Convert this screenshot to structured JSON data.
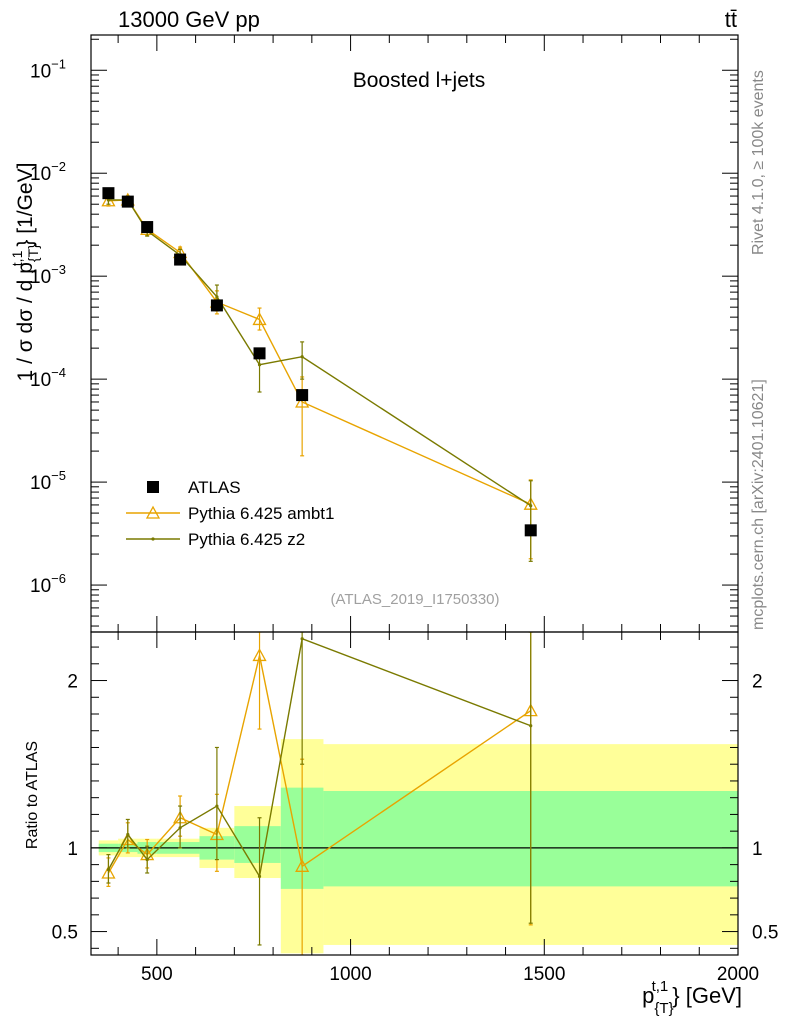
{
  "header": {
    "left": "13000 GeV pp",
    "right": "tt̄"
  },
  "side_labels": {
    "rivet": "Rivet 4.1.0, ≥ 100k events",
    "mcplots": "mcplots.cern.ch [arXiv:2401.10621]"
  },
  "chart_data": {
    "type": "scatter",
    "title": "Boosted l+jets",
    "analysis_id": "(ATLAS_2019_I1750330)",
    "xlabel": "p_{T}^{t,1} [GeV]",
    "ylabel": "1 / σ dσ / d p_{T}^{t,1} [1/GeV]",
    "ratio_ylabel": "Ratio to ATLAS",
    "xlim": [
      330,
      2000
    ],
    "ylim": [
      3.5e-07,
      0.22
    ],
    "ratio_ylim": [
      0.36,
      2.29
    ],
    "x_ticks": [
      "500",
      "1000",
      "1500",
      "2000"
    ],
    "y_ticks": [
      "10^{-6}",
      "10^{-5}",
      "10^{-4}",
      "10^{-3}",
      "10^{-2}",
      "10^{-1}"
    ],
    "ratio_ticks": [
      "0.5",
      "1",
      "2"
    ],
    "bins": [
      {
        "low": 350,
        "high": 400
      },
      {
        "low": 400,
        "high": 450
      },
      {
        "low": 450,
        "high": 500
      },
      {
        "low": 500,
        "high": 610
      },
      {
        "low": 610,
        "high": 700
      },
      {
        "low": 700,
        "high": 820
      },
      {
        "low": 820,
        "high": 930
      },
      {
        "low": 930,
        "high": 2000
      }
    ],
    "band_inner": [
      [
        0.975,
        1.025
      ],
      [
        0.975,
        1.025
      ],
      [
        0.965,
        1.035
      ],
      [
        0.965,
        1.035
      ],
      [
        0.93,
        1.07
      ],
      [
        0.91,
        1.13
      ],
      [
        0.755,
        1.36
      ],
      [
        0.77,
        1.34
      ]
    ],
    "band_outer": [
      [
        0.955,
        1.045
      ],
      [
        0.945,
        1.055
      ],
      [
        0.945,
        1.055
      ],
      [
        0.945,
        1.055
      ],
      [
        0.88,
        1.12
      ],
      [
        0.82,
        1.25
      ],
      [
        0.37,
        1.65
      ],
      [
        0.42,
        1.62
      ]
    ],
    "series": [
      {
        "name": "ATLAS",
        "color": "#000000",
        "marker": "square",
        "x": [
          375,
          425,
          475,
          560,
          655,
          765,
          875,
          1465
        ],
        "y": [
          0.0064,
          0.0053,
          0.003,
          0.00145,
          0.00052,
          0.000178,
          7e-05,
          3.4e-06
        ],
        "ratio": [
          1,
          1,
          1,
          1,
          1,
          1,
          1,
          1
        ]
      },
      {
        "name": "Pythia 6.425 ambt1",
        "color": "#e8a400",
        "marker": "triangle",
        "x": [
          375,
          425,
          475,
          560,
          655,
          765,
          875,
          1465
        ],
        "y": [
          0.0054,
          0.0055,
          0.00285,
          0.0017,
          0.00056,
          0.00038,
          6e-05,
          6.1e-06
        ],
        "err": [
          [
            0.0048,
            0.0061
          ],
          [
            0.005,
            0.006
          ],
          [
            0.0025,
            0.0032
          ],
          [
            0.0015,
            0.00192
          ],
          [
            0.00043,
            0.00072
          ],
          [
            0.0003,
            0.00049
          ],
          [
            1.8e-05,
            0.000105
          ],
          [
            1.8e-06,
            1.05e-05
          ]
        ],
        "ratio": [
          0.85,
          1.05,
          0.96,
          1.18,
          1.08,
          2.15,
          0.89,
          1.82
        ],
        "ratio_err": [
          [
            0.77,
            0.94
          ],
          [
            0.97,
            1.15
          ],
          [
            0.88,
            1.05
          ],
          [
            1.07,
            1.31
          ],
          [
            0.86,
            1.32
          ],
          [
            1.71,
            2.6
          ],
          [
            0.34,
            1.53
          ],
          [
            0.54,
            3.1
          ]
        ]
      },
      {
        "name": "Pythia 6.425 z2",
        "color": "#7a7a00",
        "marker": "dot",
        "x": [
          375,
          425,
          475,
          560,
          655,
          765,
          875,
          1465
        ],
        "y": [
          0.0055,
          0.0055,
          0.00275,
          0.0016,
          0.00063,
          0.000138,
          0.000165,
          5.9e-06
        ],
        "err": [
          [
            0.005,
            0.006
          ],
          [
            0.0051,
            0.006
          ],
          [
            0.00245,
            0.0031
          ],
          [
            0.0014,
            0.00182
          ],
          [
            0.00046,
            0.00082
          ],
          [
            7.5e-05,
            0.0002
          ],
          [
            0.0001,
            0.00023
          ],
          [
            1.7e-06,
            1.03e-05
          ]
        ],
        "ratio": [
          0.87,
          1.08,
          0.93,
          1.12,
          1.25,
          0.83,
          2.25,
          1.73
        ],
        "ratio_err": [
          [
            0.79,
            0.96
          ],
          [
            1.0,
            1.17
          ],
          [
            0.85,
            1.01
          ],
          [
            1.0,
            1.25
          ],
          [
            0.93,
            1.6
          ],
          [
            0.42,
            1.18
          ],
          [
            1.5,
            3.0
          ],
          [
            0.55,
            3.1
          ]
        ]
      }
    ]
  }
}
